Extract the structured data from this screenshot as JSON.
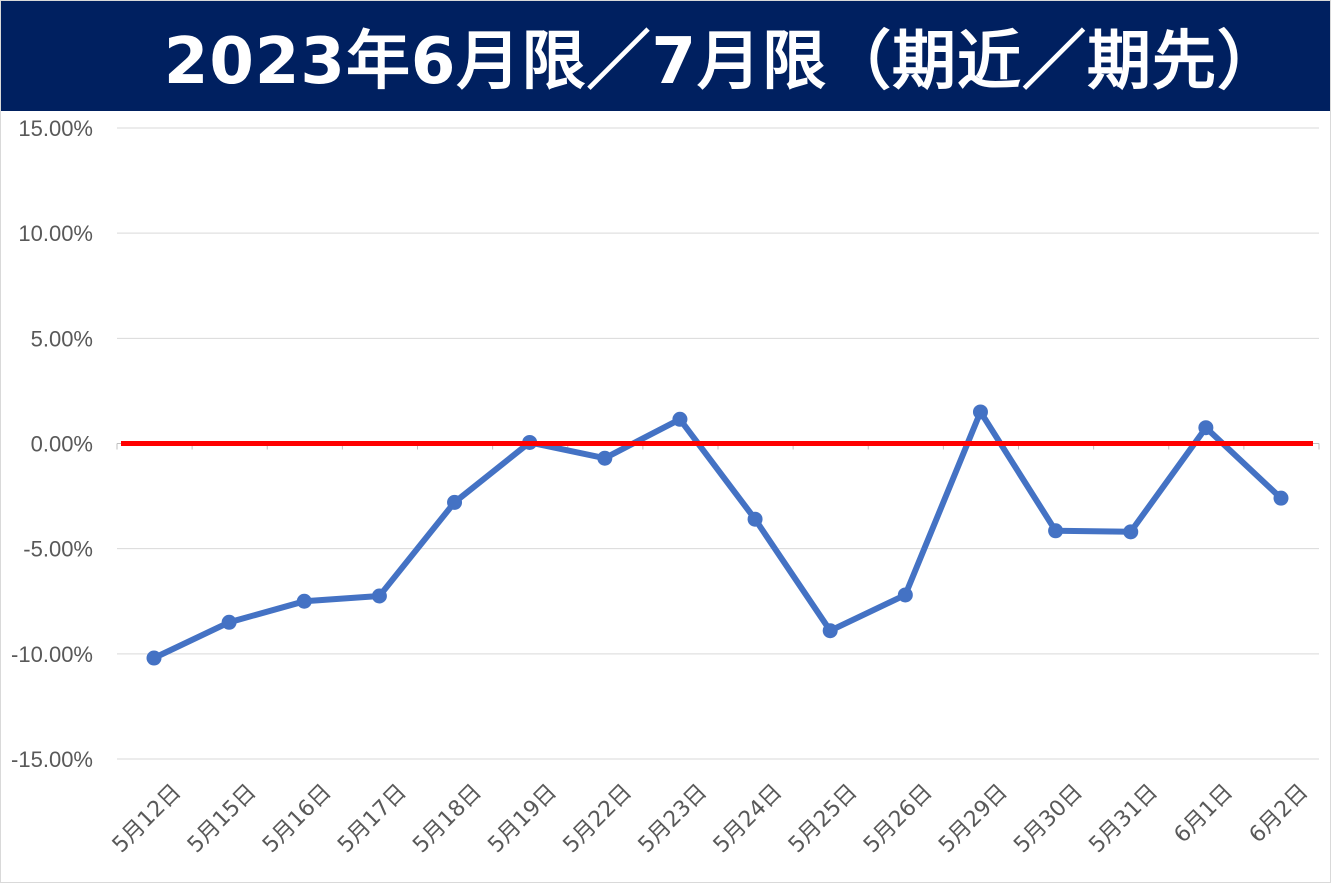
{
  "chart_data": {
    "type": "line",
    "title": "2023年6月限／7月限（期近／期先）",
    "categories": [
      "5月12日",
      "5月15日",
      "5月16日",
      "5月17日",
      "5月18日",
      "5月19日",
      "5月22日",
      "5月23日",
      "5月24日",
      "5月25日",
      "5月26日",
      "5月29日",
      "5月30日",
      "5月31日",
      "6月1日",
      "6月2日"
    ],
    "series": [
      {
        "values": [
          -10.2,
          -8.5,
          -7.5,
          -7.25,
          -2.8,
          0.05,
          -0.7,
          1.15,
          -3.6,
          -8.9,
          -7.2,
          1.5,
          -4.15,
          -4.2,
          0.75,
          -2.6
        ],
        "color": "#4472C4"
      }
    ],
    "reference_line": {
      "value": 0,
      "color": "#FF0000"
    },
    "yticks": [
      "15.00%",
      "10.00%",
      "5.00%",
      "0.00%",
      "-5.00%",
      "-10.00%",
      "-15.00%"
    ],
    "ylim": [
      -15,
      15
    ],
    "grid": true,
    "legend": "none"
  }
}
